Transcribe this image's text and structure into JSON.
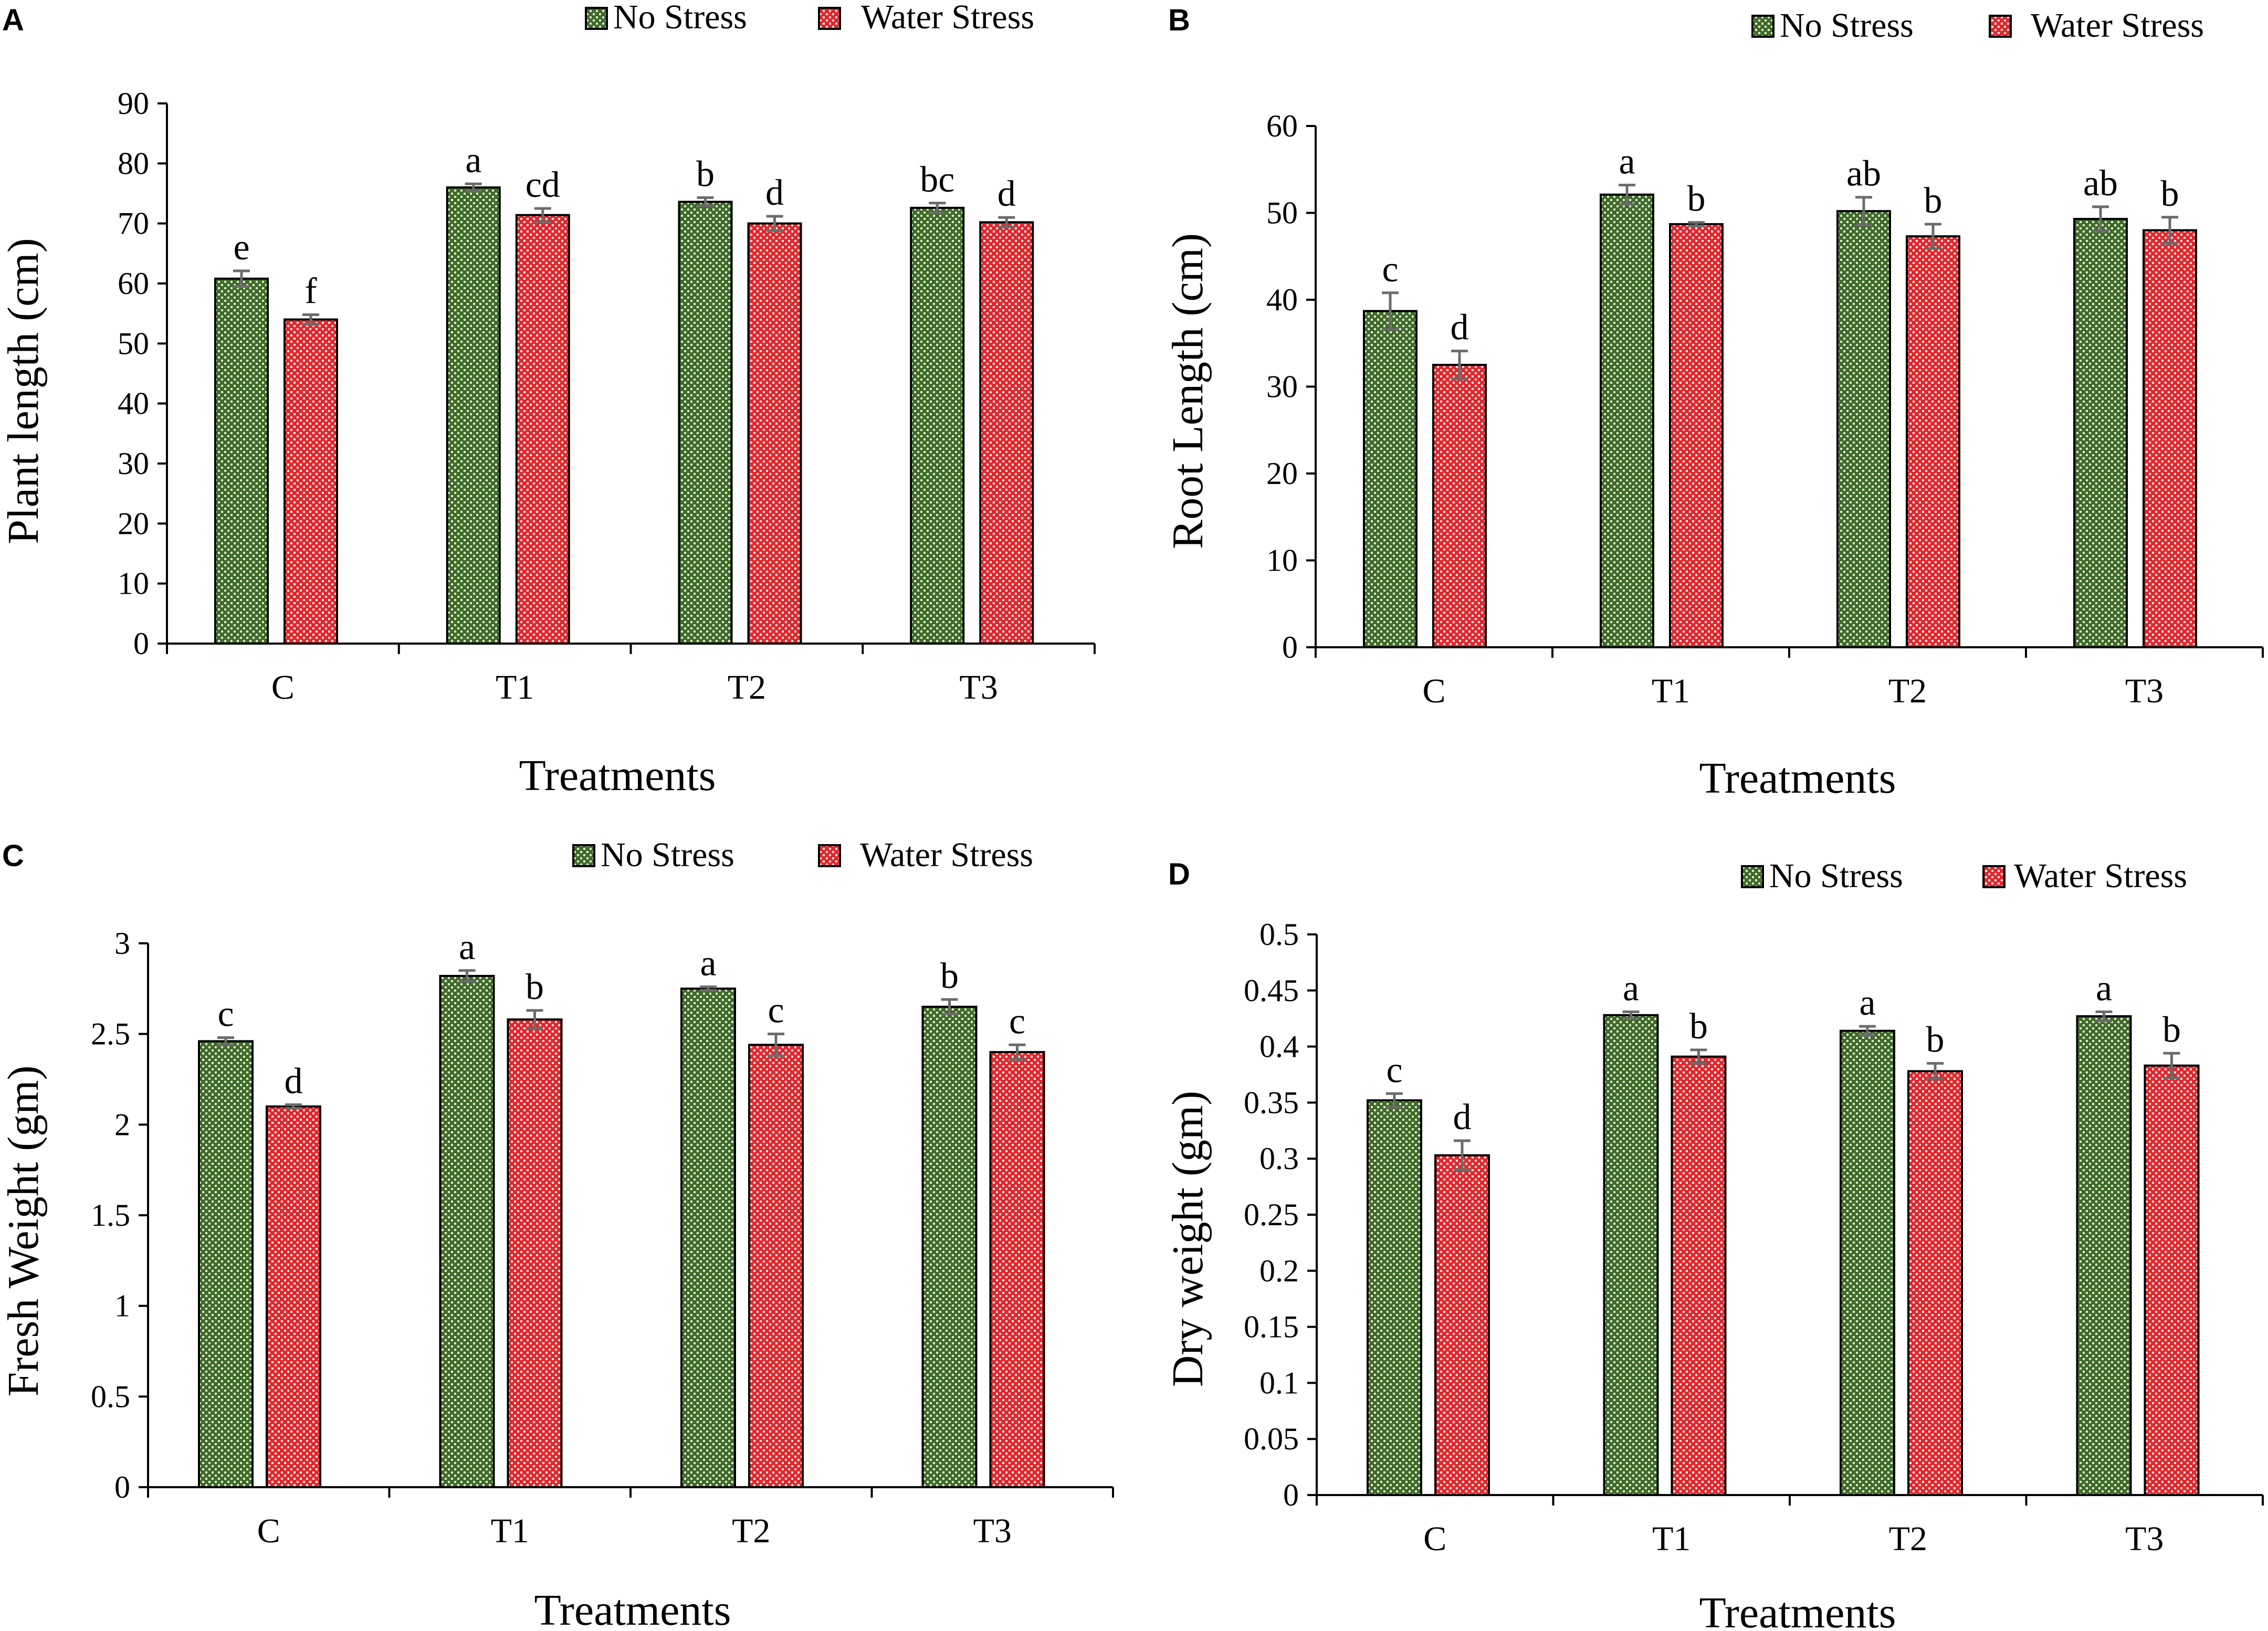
{
  "colors": {
    "no_stress_base": "#3f6b2a",
    "no_stress_dot": "#dfe8cc",
    "water_stress_base": "#e0282d",
    "water_stress_dot": "#ffe1e1",
    "error_bar": "#6b6b6b"
  },
  "chart_data": [
    {
      "panel": "A",
      "type": "bar",
      "categories": [
        "C",
        "T1",
        "T2",
        "T3"
      ],
      "series": [
        {
          "name": "No Stress",
          "values": [
            60.8,
            76.0,
            73.6,
            72.6
          ],
          "errors": [
            1.3,
            0.6,
            0.7,
            0.8
          ],
          "labels": [
            "e",
            "a",
            "b",
            "bc"
          ]
        },
        {
          "name": "Water Stress",
          "values": [
            54.0,
            71.4,
            70.0,
            70.2
          ],
          "errors": [
            0.8,
            1.1,
            1.2,
            0.8
          ],
          "labels": [
            "f",
            "cd",
            "d",
            "d"
          ]
        }
      ],
      "xlabel": "Treatments",
      "ylabel": "Plant length (cm)",
      "ylim": [
        0,
        90
      ],
      "yticks": [
        "0",
        "10",
        "20",
        "30",
        "40",
        "50",
        "60",
        "70",
        "80",
        "90"
      ],
      "legend": "top-right"
    },
    {
      "panel": "B",
      "type": "bar",
      "categories": [
        "C",
        "T1",
        "T2",
        "T3"
      ],
      "series": [
        {
          "name": "No Stress",
          "values": [
            38.7,
            52.1,
            50.2,
            49.3
          ],
          "errors": [
            2.1,
            1.1,
            1.6,
            1.4
          ],
          "labels": [
            "c",
            "a",
            "ab",
            "ab"
          ]
        },
        {
          "name": "Water Stress",
          "values": [
            32.5,
            48.7,
            47.3,
            48.0
          ],
          "errors": [
            1.6,
            0.2,
            1.4,
            1.5
          ],
          "labels": [
            "d",
            "b",
            "b",
            "b"
          ]
        }
      ],
      "xlabel": "Treatments",
      "ylabel": "Root Length (cm)",
      "ylim": [
        0,
        60
      ],
      "yticks": [
        "0",
        "10",
        "20",
        "30",
        "40",
        "50",
        "60"
      ],
      "legend": "top-right"
    },
    {
      "panel": "C",
      "type": "bar",
      "categories": [
        "C",
        "T1",
        "T2",
        "T3"
      ],
      "series": [
        {
          "name": "No Stress",
          "values": [
            2.46,
            2.82,
            2.75,
            2.65
          ],
          "errors": [
            0.02,
            0.03,
            0.01,
            0.04
          ],
          "labels": [
            "c",
            "a",
            "a",
            "b"
          ]
        },
        {
          "name": "Water Stress",
          "values": [
            2.1,
            2.58,
            2.44,
            2.4
          ],
          "errors": [
            0.01,
            0.05,
            0.06,
            0.04
          ],
          "labels": [
            "d",
            "b",
            "c",
            "c"
          ]
        }
      ],
      "xlabel": "Treatments",
      "ylabel": "Fresh Weight (gm)",
      "ylim": [
        0,
        3
      ],
      "yticks": [
        "0",
        "0.5",
        "1",
        "1.5",
        "2",
        "2.5",
        "3"
      ],
      "legend": "top-right"
    },
    {
      "panel": "D",
      "type": "bar",
      "categories": [
        "C",
        "T1",
        "T2",
        "T3"
      ],
      "series": [
        {
          "name": "No Stress",
          "values": [
            0.352,
            0.428,
            0.414,
            0.427
          ],
          "errors": [
            0.006,
            0.003,
            0.004,
            0.004
          ],
          "labels": [
            "c",
            "a",
            "a",
            "a"
          ]
        },
        {
          "name": "Water Stress",
          "values": [
            0.303,
            0.391,
            0.378,
            0.383
          ],
          "errors": [
            0.013,
            0.006,
            0.007,
            0.011
          ],
          "labels": [
            "d",
            "b",
            "b",
            "b"
          ]
        }
      ],
      "xlabel": "Treatments",
      "ylabel": "Dry weight (gm)",
      "ylim": [
        0,
        0.5
      ],
      "yticks": [
        "0",
        "0.05",
        "0.1",
        "0.15",
        "0.2",
        "0.25",
        "0.3",
        "0.35",
        "0.4",
        "0.45",
        "0.5"
      ],
      "legend": "top-right"
    }
  ]
}
